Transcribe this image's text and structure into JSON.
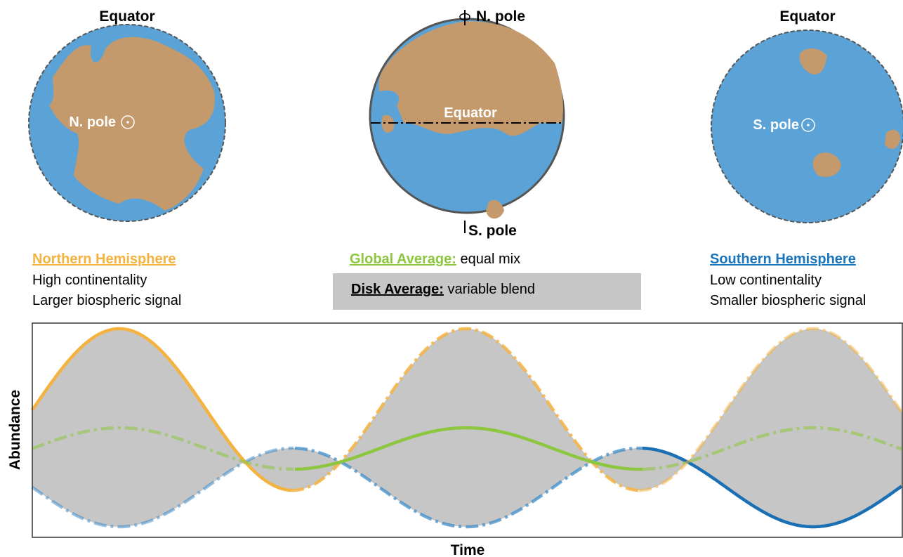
{
  "globes": [
    {
      "top_label": "Equator",
      "center_label": "N. pole"
    },
    {
      "top_label": "N. pole",
      "center_label": "Equator",
      "bottom_label": "S. pole"
    },
    {
      "top_label": "Equator",
      "center_label": "S. pole"
    }
  ],
  "legend": {
    "northern": {
      "title": "Northern Hemisphere",
      "lines": [
        "High continentality",
        "Larger biospheric signal"
      ]
    },
    "global": {
      "title": "Global Average:",
      "text": "equal mix"
    },
    "disk": {
      "title": "Disk Average:",
      "text": "variable blend"
    },
    "southern": {
      "title": "Southern Hemisphere",
      "lines": [
        "Low continentality",
        "Smaller biospheric signal"
      ]
    }
  },
  "plot": {
    "x_label": "Time",
    "y_label": "Abundance"
  }
}
